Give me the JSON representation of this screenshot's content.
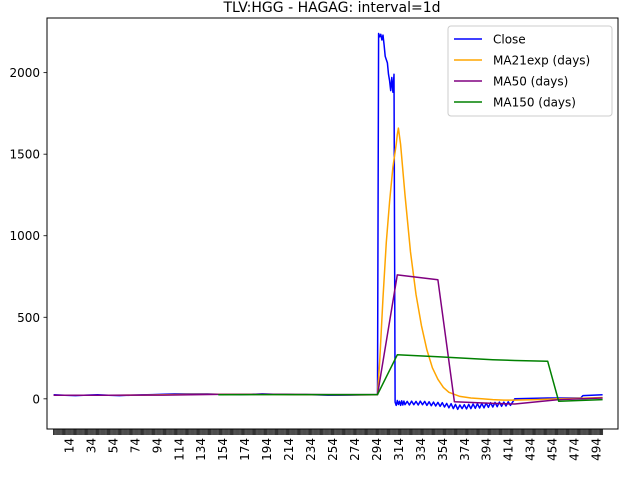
{
  "chart_data": {
    "type": "line",
    "title": "TLV:HGG - HAGAG: interval=1d",
    "xlabel": "",
    "ylabel": "",
    "xlim": [
      -6,
      514
    ],
    "ylim": [
      -185,
      2335
    ],
    "x_tick_labels": [
      "14",
      "34",
      "54",
      "74",
      "94",
      "114",
      "134",
      "154",
      "174",
      "194",
      "214",
      "234",
      "254",
      "274",
      "294",
      "314",
      "334",
      "354",
      "374",
      "394",
      "414",
      "434",
      "454",
      "474",
      "494"
    ],
    "y_tick_labels": [
      "0",
      "500",
      "1000",
      "1500",
      "2000"
    ],
    "y_ticks": [
      0,
      500,
      1000,
      1500,
      2000
    ],
    "grid": false,
    "legend_position": "top-right",
    "series": [
      {
        "name": "Close",
        "color": "#0000ff",
        "x": [
          0,
          10,
          20,
          30,
          40,
          50,
          60,
          70,
          80,
          90,
          100,
          110,
          120,
          130,
          140,
          150,
          160,
          170,
          180,
          190,
          200,
          210,
          220,
          230,
          240,
          250,
          260,
          270,
          280,
          290,
          295,
          296,
          297,
          298,
          299,
          300,
          301,
          302,
          303,
          304,
          305,
          306,
          307,
          308,
          309,
          310,
          311,
          312,
          313,
          314,
          315,
          316,
          317,
          318,
          319,
          320,
          322,
          324,
          326,
          328,
          330,
          332,
          334,
          336,
          338,
          340,
          342,
          344,
          346,
          348,
          350,
          352,
          354,
          356,
          358,
          360,
          362,
          364,
          366,
          368,
          370,
          372,
          374,
          376,
          378,
          380,
          382,
          384,
          386,
          388,
          390,
          392,
          394,
          396,
          398,
          400,
          402,
          404,
          406,
          408,
          410,
          412,
          414,
          416,
          420,
          430,
          440,
          450,
          460,
          470,
          480,
          482,
          490,
          500
        ],
        "y": [
          25,
          22,
          20,
          23,
          25,
          22,
          20,
          22,
          24,
          26,
          28,
          30,
          30,
          30,
          30,
          28,
          28,
          26,
          28,
          30,
          28,
          28,
          25,
          26,
          24,
          22,
          22,
          23,
          24,
          25,
          25,
          2240,
          2220,
          2235,
          2200,
          2230,
          2170,
          2100,
          2080,
          2060,
          1990,
          1950,
          1890,
          1970,
          1880,
          1990,
          -20,
          -40,
          -10,
          -35,
          -15,
          -40,
          -12,
          -38,
          -14,
          -36,
          -16,
          -38,
          -14,
          -36,
          -16,
          -38,
          -14,
          -36,
          -16,
          -40,
          -18,
          -42,
          -20,
          -44,
          -22,
          -46,
          -24,
          -50,
          -28,
          -55,
          -30,
          -60,
          -34,
          -64,
          -38,
          -60,
          -36,
          -62,
          -34,
          -60,
          -32,
          -58,
          -30,
          -56,
          -28,
          -55,
          -26,
          -52,
          -24,
          -50,
          -22,
          -48,
          -20,
          -46,
          -20,
          -44,
          -18,
          -40,
          0,
          2,
          4,
          5,
          5,
          5,
          5,
          20,
          22,
          25
        ]
      },
      {
        "name": "MA21exp (days)",
        "color": "#ffa500",
        "x": [
          0,
          20,
          40,
          60,
          80,
          100,
          120,
          140,
          160,
          180,
          200,
          220,
          240,
          260,
          280,
          295,
          297,
          300,
          303,
          306,
          309,
          312,
          313,
          314,
          316,
          320,
          325,
          330,
          335,
          340,
          345,
          350,
          355,
          360,
          370,
          380,
          390,
          400,
          410,
          420,
          440,
          460,
          480,
          500
        ],
        "y": [
          22,
          22,
          22,
          22,
          23,
          25,
          27,
          28,
          28,
          28,
          27,
          26,
          25,
          24,
          24,
          25,
          230,
          620,
          960,
          1210,
          1420,
          1560,
          1620,
          1660,
          1560,
          1250,
          900,
          640,
          450,
          300,
          190,
          120,
          70,
          40,
          15,
          5,
          0,
          -5,
          -8,
          -8,
          -5,
          0,
          3,
          8
        ]
      },
      {
        "name": "MA50 (days)",
        "color": "#800080",
        "x": [
          0,
          50,
          100,
          150,
          200,
          250,
          295,
          313,
          350,
          365,
          400,
          420,
          460,
          500
        ],
        "y": [
          22,
          22,
          23,
          27,
          28,
          26,
          26,
          760,
          730,
          -18,
          -28,
          -32,
          -5,
          5
        ]
      },
      {
        "name": "MA150 (days)",
        "color": "#008000",
        "x": [
          150,
          200,
          250,
          295,
          313,
          350,
          400,
          420,
          450,
          460,
          500
        ],
        "y": [
          25,
          26,
          26,
          26,
          270,
          258,
          240,
          235,
          230,
          -15,
          -5
        ]
      }
    ]
  }
}
